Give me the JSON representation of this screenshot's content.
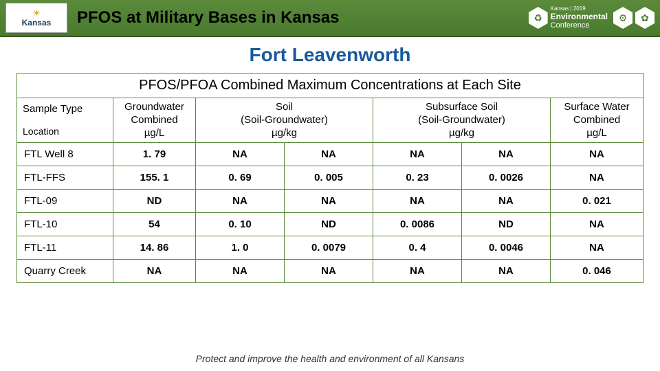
{
  "header": {
    "logo_left_top": "☀",
    "logo_left_text": "Kansas",
    "title": "PFOS at Military Bases in Kansas",
    "conf_line1": "Kansas | 2019",
    "conf_line2": "Environmental",
    "conf_line3": "Conference"
  },
  "subtitle": "Fort Leavenworth",
  "table": {
    "caption": "PFOS/PFOA Combined Maximum Concentrations at Each Site",
    "corner_sample": "Sample Type",
    "corner_location": "Location",
    "columns": [
      {
        "l1": "Groundwater",
        "l2": "Combined",
        "l3": "µg/L"
      },
      {
        "l1": "Soil",
        "l2": "(Soil-Groundwater)",
        "l3": "µg/kg"
      },
      {
        "l1": "Subsurface Soil",
        "l2": "(Soil-Groundwater)",
        "l3": "µg/kg"
      },
      {
        "l1": "Surface Water",
        "l2": "Combined",
        "l3": "µg/L"
      }
    ],
    "col_spans": [
      1,
      2,
      2,
      1
    ],
    "rows": [
      {
        "label": "FTL Well 8",
        "cells": [
          "1. 79",
          "NA",
          "NA",
          "NA",
          "NA",
          "NA"
        ]
      },
      {
        "label": "FTL-FFS",
        "cells": [
          "155. 1",
          "0. 69",
          "0. 005",
          "0. 23",
          "0. 0026",
          "NA"
        ]
      },
      {
        "label": "FTL-09",
        "cells": [
          "ND",
          "NA",
          "NA",
          "NA",
          "NA",
          "0. 021"
        ]
      },
      {
        "label": "FTL-10",
        "cells": [
          "54",
          "0. 10",
          "ND",
          "0. 0086",
          "ND",
          "NA"
        ]
      },
      {
        "label": "FTL-11",
        "cells": [
          "14. 86",
          "1. 0",
          "0. 0079",
          "0. 4",
          "0. 0046",
          "NA"
        ]
      },
      {
        "label": "Quarry Creek",
        "cells": [
          "NA",
          "NA",
          "NA",
          "NA",
          "NA",
          "0. 046"
        ]
      }
    ]
  },
  "footer": "Protect and improve the health and environment of all Kansans",
  "colors": {
    "header_bg": "#4a7a2e",
    "border": "#5a8a3a",
    "subtitle": "#1a5a9a"
  }
}
